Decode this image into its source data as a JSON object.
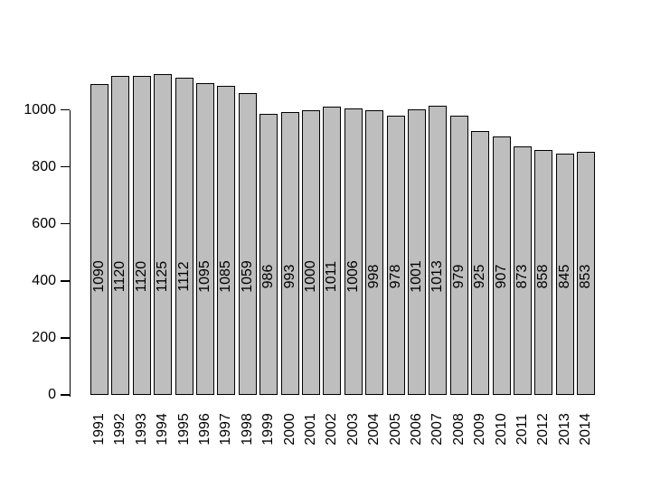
{
  "chart_data": {
    "type": "bar",
    "title": "",
    "xlabel": "",
    "ylabel": "",
    "categories": [
      "1991",
      "1992",
      "1993",
      "1994",
      "1995",
      "1996",
      "1997",
      "1998",
      "1999",
      "2000",
      "2001",
      "2002",
      "2003",
      "2004",
      "2005",
      "2006",
      "2007",
      "2008",
      "2009",
      "2010",
      "2011",
      "2012",
      "2013",
      "2014"
    ],
    "values": [
      1090,
      1120,
      1120,
      1125,
      1112,
      1095,
      1085,
      1059,
      986,
      993,
      1000,
      1011,
      1006,
      998,
      978,
      1001,
      1013,
      979,
      925,
      907,
      873,
      858,
      845,
      853
    ],
    "bar_value_labels": [
      "1090",
      "1120",
      "1120",
      "1125",
      "1112",
      "1095",
      "1085",
      "1059",
      "986",
      "993",
      "1000",
      "1011",
      "1006",
      "998",
      "978",
      "1001",
      "1013",
      "979",
      "925",
      "907",
      "873",
      "858",
      "845",
      "853"
    ],
    "yticks": [
      0,
      200,
      400,
      600,
      800,
      1000
    ],
    "ytick_labels": [
      "0",
      "200",
      "400",
      "600",
      "800",
      "1000"
    ],
    "ylim": [
      0,
      1125
    ],
    "grid": false,
    "legend": false,
    "x_label_rotation_deg": 90,
    "value_label_rotation_deg": 90,
    "bar_fill_color": "#bebebe",
    "bar_border_color": "#000000",
    "text_color": "#000000",
    "background_color": "#ffffff"
  }
}
